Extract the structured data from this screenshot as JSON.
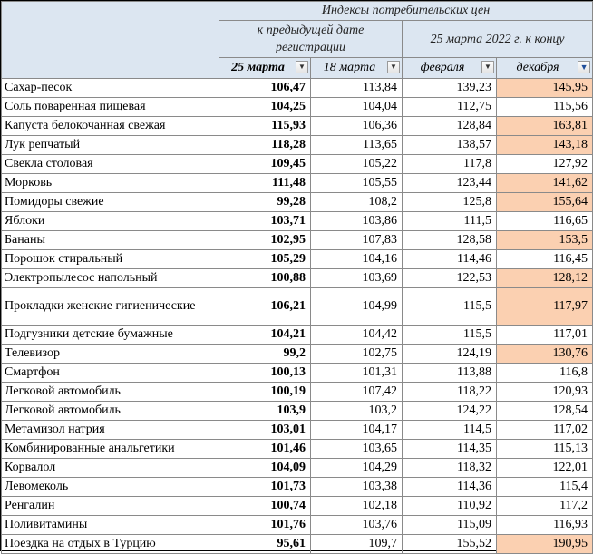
{
  "header": {
    "title": "Индексы потребительских цен",
    "group_prev": "к предыдущей дате регистрации",
    "group_ref": "25 марта 2022 г. к концу",
    "cols": [
      {
        "label": "25 марта",
        "filter": "dropdown"
      },
      {
        "label": "18 марта",
        "filter": "dropdown"
      },
      {
        "label": "февраля",
        "filter": "dropdown"
      },
      {
        "label": "декабря",
        "filter": "filter-active"
      }
    ]
  },
  "colors": {
    "header_bg": "#dce6f1",
    "highlight": "#fbd0b1"
  },
  "rows": [
    {
      "name": "Сахар-песок",
      "v": [
        "106,47",
        "113,84",
        "139,23",
        "145,95"
      ],
      "hl": true
    },
    {
      "name": "Соль поваренная пищевая",
      "v": [
        "104,25",
        "104,04",
        "112,75",
        "115,56"
      ],
      "hl": false
    },
    {
      "name": "Капуста белокочанная свежая",
      "v": [
        "115,93",
        "106,36",
        "128,84",
        "163,81"
      ],
      "hl": true
    },
    {
      "name": "Лук репчатый",
      "v": [
        "118,28",
        "113,65",
        "138,57",
        "143,18"
      ],
      "hl": true
    },
    {
      "name": "Свекла столовая",
      "v": [
        "109,45",
        "105,22",
        "117,8",
        "127,92"
      ],
      "hl": false
    },
    {
      "name": "Морковь",
      "v": [
        "111,48",
        "105,55",
        "123,44",
        "141,62"
      ],
      "hl": true
    },
    {
      "name": "Помидоры свежие",
      "v": [
        "99,28",
        "108,2",
        "125,8",
        "155,64"
      ],
      "hl": true
    },
    {
      "name": "Яблоки",
      "v": [
        "103,71",
        "103,86",
        "111,5",
        "116,65"
      ],
      "hl": false
    },
    {
      "name": "Бананы",
      "v": [
        "102,95",
        "107,83",
        "128,58",
        "153,5"
      ],
      "hl": true
    },
    {
      "name": "Порошок стиральный",
      "v": [
        "105,29",
        "104,16",
        "114,46",
        "116,45"
      ],
      "hl": false
    },
    {
      "name": "Электропылесос напольный",
      "v": [
        "100,88",
        "103,69",
        "122,53",
        "128,12"
      ],
      "hl": true
    },
    {
      "name": "Прокладки женские гигиенические",
      "v": [
        "106,21",
        "104,99",
        "115,5",
        "117,97"
      ],
      "hl": true,
      "tall": true
    },
    {
      "name": "Подгузники детские бумажные",
      "v": [
        "104,21",
        "104,42",
        "115,5",
        "117,01"
      ],
      "hl": false
    },
    {
      "name": "Телевизор",
      "v": [
        "99,2",
        "102,75",
        "124,19",
        "130,76"
      ],
      "hl": true
    },
    {
      "name": "Смартфон",
      "v": [
        "100,13",
        "101,31",
        "113,88",
        "116,8"
      ],
      "hl": false
    },
    {
      "name": "Легковой автомобиль",
      "v": [
        "100,19",
        "107,42",
        "118,22",
        "120,93"
      ],
      "hl": false
    },
    {
      "name": "Легковой автомобиль",
      "v": [
        "103,9",
        "103,2",
        "124,22",
        "128,54"
      ],
      "hl": false
    },
    {
      "name": "Метамизол натрия",
      "v": [
        "103,01",
        "104,17",
        "114,5",
        "117,02"
      ],
      "hl": false
    },
    {
      "name": "Комбинированные анальгетики",
      "v": [
        "101,46",
        "103,65",
        "114,35",
        "115,13"
      ],
      "hl": false
    },
    {
      "name": "Корвалол",
      "v": [
        "104,09",
        "104,29",
        "118,32",
        "122,01"
      ],
      "hl": false
    },
    {
      "name": "Левомеколь",
      "v": [
        "101,73",
        "103,38",
        "114,36",
        "115,4"
      ],
      "hl": false
    },
    {
      "name": "Ренгалин",
      "v": [
        "100,74",
        "102,18",
        "110,92",
        "117,2"
      ],
      "hl": false
    },
    {
      "name": "Поливитамины",
      "v": [
        "101,76",
        "103,76",
        "115,09",
        "116,93"
      ],
      "hl": false
    },
    {
      "name": "Поездка на отдых в Турцию",
      "v": [
        "95,61",
        "109,7",
        "155,52",
        "190,95"
      ],
      "hl": true
    }
  ]
}
